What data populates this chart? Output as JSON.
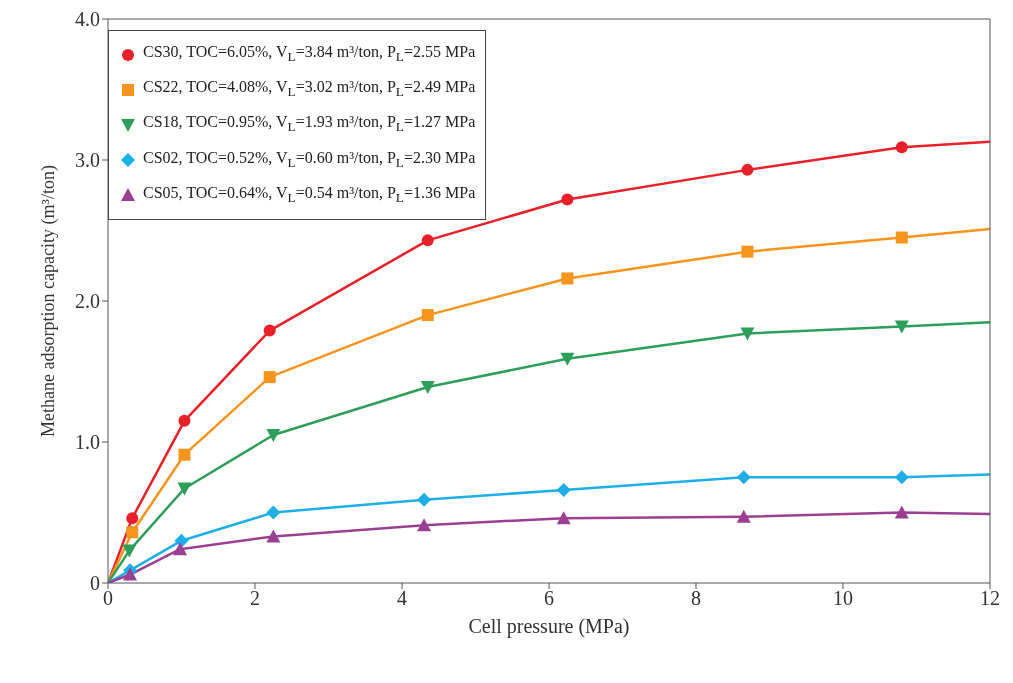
{
  "chart_data": {
    "type": "line",
    "xlabel": "Cell pressure (MPa)",
    "ylabel": "Methane adsorption capacity (m³/ton)",
    "xlim": [
      0,
      12
    ],
    "xticks": [
      0,
      2,
      4,
      6,
      8,
      10,
      12
    ],
    "ylim": [
      0,
      4
    ],
    "yticks": [
      0,
      {
        "value": 1,
        "label": "1.0"
      },
      {
        "value": 2,
        "label": "2.0"
      },
      {
        "value": 3,
        "label": "3.0"
      },
      {
        "value": 4,
        "label": "4.0"
      }
    ],
    "legend": "top left",
    "line_style": "solid",
    "series": [
      {
        "name": "CS30, TOC=6.05%, V$_{L}$=3.84 m³/ton, P$_{L}$=2.55 MPa",
        "color": "#e8202a",
        "marker": "circle",
        "x": [
          0,
          0.33,
          1.04,
          2.2,
          4.35,
          6.25,
          8.7,
          10.8,
          12
        ],
        "values": [
          0,
          0.46,
          1.15,
          1.79,
          2.43,
          2.72,
          2.93,
          3.09,
          3.13
        ]
      },
      {
        "name": "CS22, TOC=4.08%, V$_{L}$=3.02 m³/ton, P$_{L}$=2.49 MPa",
        "color": "#f7941d",
        "marker": "square",
        "x": [
          0,
          0.33,
          1.04,
          2.2,
          4.35,
          6.25,
          8.7,
          10.8,
          12
        ],
        "values": [
          0,
          0.36,
          0.91,
          1.46,
          1.9,
          2.16,
          2.35,
          2.45,
          2.51
        ]
      },
      {
        "name": "CS18, TOC=0.95%, V$_{L}$=1.93 m³/ton, P$_{L}$=1.27 MPa",
        "color": "#2e9e5b",
        "marker": "triangle-down",
        "x": [
          0,
          0.29,
          1.04,
          2.25,
          4.35,
          6.25,
          8.7,
          10.8,
          12
        ],
        "values": [
          0,
          0.23,
          0.67,
          1.05,
          1.39,
          1.59,
          1.77,
          1.82,
          1.85
        ]
      },
      {
        "name": "CS02, TOC=0.52%, V$_{L}$=0.60 m³/ton, P$_{L}$=2.30 MPa",
        "color": "#1eaee8",
        "marker": "diamond",
        "x": [
          0,
          0.3,
          1.0,
          2.25,
          4.3,
          6.2,
          8.65,
          10.8,
          12
        ],
        "values": [
          0,
          0.09,
          0.3,
          0.5,
          0.59,
          0.66,
          0.75,
          0.75,
          0.77
        ]
      },
      {
        "name": "CS05, TOC=0.64%, V$_{L}$=0.54  m³/ton, P$_{L}$=1.36 MPa",
        "color": "#9b3f93",
        "marker": "triangle",
        "x": [
          0,
          0.3,
          0.98,
          2.25,
          4.3,
          6.2,
          8.65,
          10.8,
          12
        ],
        "values": [
          0,
          0.06,
          0.24,
          0.33,
          0.41,
          0.46,
          0.47,
          0.5,
          0.49
        ]
      }
    ]
  }
}
